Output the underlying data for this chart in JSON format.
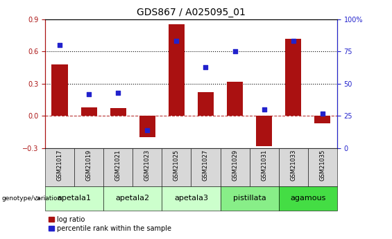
{
  "title": "GDS867 / A025095_01",
  "samples": [
    "GSM21017",
    "GSM21019",
    "GSM21021",
    "GSM21023",
    "GSM21025",
    "GSM21027",
    "GSM21029",
    "GSM21031",
    "GSM21033",
    "GSM21035"
  ],
  "log_ratio": [
    0.48,
    0.08,
    0.07,
    -0.2,
    0.85,
    0.22,
    0.32,
    -0.28,
    0.72,
    -0.07
  ],
  "percentile": [
    80,
    42,
    43,
    14,
    83,
    63,
    75,
    30,
    83,
    27
  ],
  "groups": [
    {
      "label": "apetala1",
      "samples": [
        0,
        1
      ],
      "color": "#ccffcc"
    },
    {
      "label": "apetala2",
      "samples": [
        2,
        3
      ],
      "color": "#ccffcc"
    },
    {
      "label": "apetala3",
      "samples": [
        4,
        5
      ],
      "color": "#ccffcc"
    },
    {
      "label": "pistillata",
      "samples": [
        6,
        7
      ],
      "color": "#88ee88"
    },
    {
      "label": "agamous",
      "samples": [
        8,
        9
      ],
      "color": "#44dd44"
    }
  ],
  "bar_color": "#aa1111",
  "dot_color": "#2222cc",
  "ylim_left": [
    -0.3,
    0.9
  ],
  "ylim_right": [
    0,
    100
  ],
  "yticks_left": [
    -0.3,
    0.0,
    0.3,
    0.6,
    0.9
  ],
  "yticks_right": [
    0,
    25,
    50,
    75,
    100
  ],
  "hlines": [
    0.3,
    0.6
  ],
  "bar_width": 0.55,
  "title_fontsize": 10,
  "tick_fontsize": 7,
  "sample_fontsize": 6,
  "group_fontsize": 8,
  "legend_fontsize": 7,
  "legend_items": [
    "log ratio",
    "percentile rank within the sample"
  ]
}
